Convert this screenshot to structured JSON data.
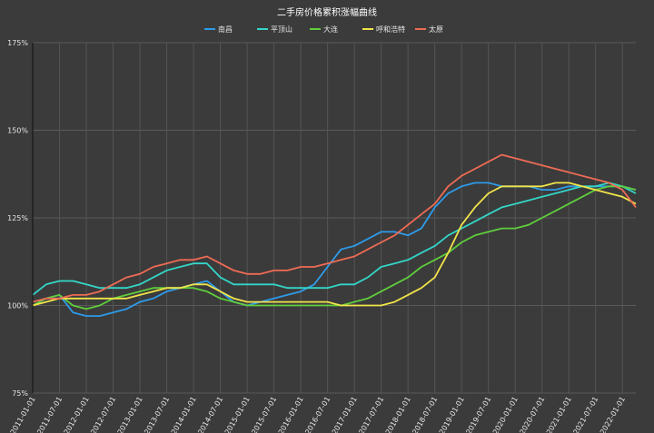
{
  "chart_data": {
    "type": "line",
    "title": "二手房价格累积涨幅曲线",
    "xlabel": "",
    "ylabel": "",
    "ylim": [
      75,
      175
    ],
    "y_ticks": [
      "75%",
      "100%",
      "125%",
      "150%",
      "175%"
    ],
    "y_tick_values": [
      75,
      100,
      125,
      150,
      175
    ],
    "grid": true,
    "legend_position": "top-center",
    "x": [
      "2011-01",
      "2011-04",
      "2011-07",
      "2011-10",
      "2012-01",
      "2012-04",
      "2012-07",
      "2012-10",
      "2013-01",
      "2013-04",
      "2013-07",
      "2013-10",
      "2014-01",
      "2014-04",
      "2014-07",
      "2014-10",
      "2015-01",
      "2015-04",
      "2015-07",
      "2015-10",
      "2016-01",
      "2016-04",
      "2016-07",
      "2016-10",
      "2017-01",
      "2017-04",
      "2017-07",
      "2017-10",
      "2018-01",
      "2018-04",
      "2018-07",
      "2018-10",
      "2019-01",
      "2019-04",
      "2019-07",
      "2019-10",
      "2020-01",
      "2020-04",
      "2020-07",
      "2020-10",
      "2021-01",
      "2021-04",
      "2021-07",
      "2021-10",
      "2022-01",
      "2022-04"
    ],
    "x_ticks": [
      "2011-01-01",
      "2011-07-01",
      "2012-01-01",
      "2012-07-01",
      "2013-01-01",
      "2013-07-01",
      "2014-01-01",
      "2014-07-01",
      "2015-01-01",
      "2015-07-01",
      "2016-01-01",
      "2016-07-01",
      "2017-01-01",
      "2017-07-01",
      "2018-01-01",
      "2018-07-01",
      "2019-01-01",
      "2019-07-01",
      "2020-01-01",
      "2020-07-01",
      "2021-01-01",
      "2021-07-01",
      "2022-01-01"
    ],
    "series": [
      {
        "name": "南昌",
        "color": "#2e9bea",
        "values": [
          100,
          102,
          103,
          98,
          97,
          97,
          98,
          99,
          101,
          102,
          104,
          105,
          106,
          107,
          104,
          101,
          100,
          101,
          102,
          103,
          104,
          106,
          111,
          116,
          117,
          119,
          121,
          121,
          120,
          122,
          128,
          132,
          134,
          135,
          135,
          134,
          134,
          134,
          133,
          133,
          134,
          134,
          134,
          134,
          134,
          133
        ]
      },
      {
        "name": "平顶山",
        "color": "#33d6c8",
        "values": [
          103,
          106,
          107,
          107,
          106,
          105,
          105,
          105,
          106,
          108,
          110,
          111,
          112,
          112,
          108,
          106,
          106,
          106,
          106,
          105,
          105,
          105,
          105,
          106,
          106,
          108,
          111,
          112,
          113,
          115,
          117,
          120,
          122,
          124,
          126,
          128,
          129,
          130,
          131,
          132,
          133,
          134,
          134,
          135,
          134,
          132
        ]
      },
      {
        "name": "大连",
        "color": "#5fce3c",
        "values": [
          100,
          102,
          103,
          100,
          99,
          100,
          102,
          103,
          104,
          105,
          105,
          105,
          105,
          104,
          102,
          101,
          100,
          100,
          100,
          100,
          100,
          100,
          100,
          100,
          101,
          102,
          104,
          106,
          108,
          111,
          113,
          115,
          118,
          120,
          121,
          122,
          122,
          123,
          125,
          127,
          129,
          131,
          133,
          134,
          134,
          133
        ]
      },
      {
        "name": "呼和浩特",
        "color": "#f1e44a",
        "values": [
          100,
          101,
          102,
          102,
          102,
          102,
          102,
          102,
          103,
          104,
          105,
          105,
          106,
          106,
          104,
          102,
          101,
          101,
          101,
          101,
          101,
          101,
          101,
          100,
          100,
          100,
          100,
          101,
          103,
          105,
          108,
          115,
          123,
          128,
          132,
          134,
          134,
          134,
          134,
          135,
          135,
          134,
          133,
          132,
          131,
          129
        ]
      },
      {
        "name": "太原",
        "color": "#ef6b55",
        "values": [
          101,
          102,
          102,
          103,
          103,
          104,
          106,
          108,
          109,
          111,
          112,
          113,
          113,
          114,
          112,
          110,
          109,
          109,
          110,
          110,
          111,
          111,
          112,
          113,
          114,
          116,
          118,
          120,
          123,
          126,
          129,
          134,
          137,
          139,
          141,
          143,
          142,
          141,
          140,
          139,
          138,
          137,
          136,
          135,
          133,
          128
        ]
      }
    ]
  }
}
